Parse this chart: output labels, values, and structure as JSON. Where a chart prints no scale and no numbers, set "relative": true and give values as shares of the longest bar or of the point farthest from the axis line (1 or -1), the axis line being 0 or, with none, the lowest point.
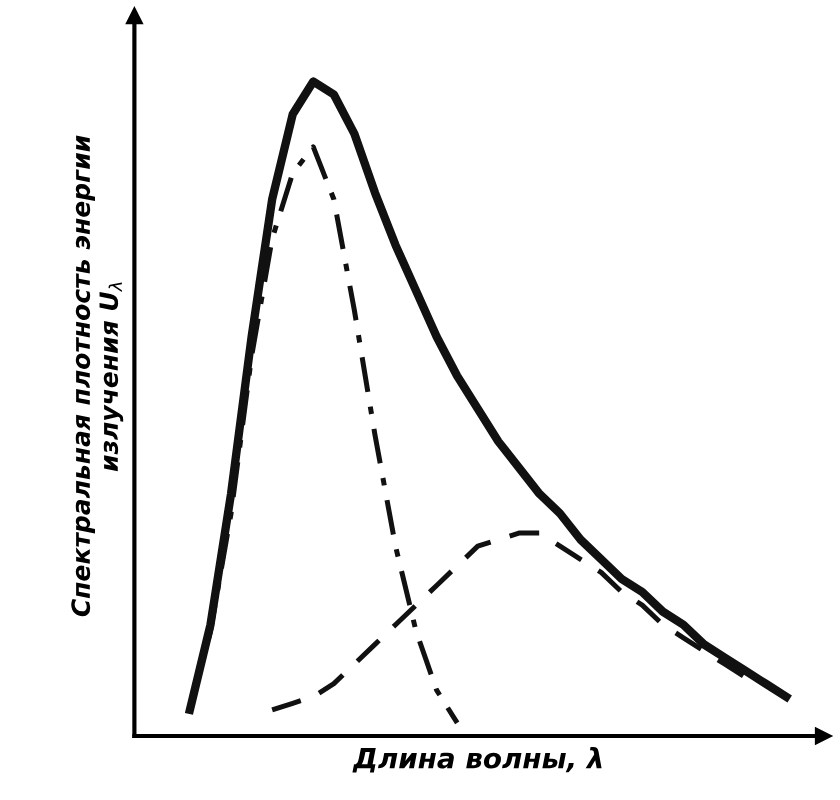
{
  "chart_data": {
    "type": "line",
    "relative": true,
    "xlabel": "Длина волны, λ",
    "ylabel": "Спектральная плотность энергии\nизлучения U$_{λ}$",
    "categories": [
      null,
      null,
      null,
      null,
      null,
      null,
      null,
      null,
      null,
      null,
      null,
      null,
      null,
      null,
      null,
      null,
      null,
      null,
      null,
      null,
      null,
      null,
      null,
      null,
      null,
      null,
      null,
      null,
      null,
      null
    ],
    "series": [
      {
        "color": "#111111",
        "line_style": "solid",
        "values": [
          0.04,
          0.17,
          0.37,
          0.61,
          0.82,
          0.95,
          1.0,
          0.98,
          0.92,
          0.83,
          0.75,
          0.68,
          0.61,
          0.55,
          0.5,
          0.45,
          0.41,
          0.37,
          0.34,
          0.3,
          0.27,
          0.24,
          0.22,
          0.19,
          0.17,
          0.14,
          0.12,
          0.1,
          0.08,
          0.06
        ]
      },
      {
        "color": "#111111",
        "line_style": "dashdot",
        "values": [
          0.04,
          0.16,
          0.34,
          0.58,
          0.76,
          0.86,
          0.9,
          0.82,
          0.65,
          0.46,
          0.29,
          0.16,
          0.07,
          0.02,
          null,
          null,
          null,
          null,
          null,
          null,
          null,
          null,
          null,
          null,
          null,
          null,
          null,
          null,
          null,
          null
        ]
      },
      {
        "color": "#111111",
        "line_style": "dashed",
        "values": [
          null,
          null,
          null,
          null,
          0.04,
          0.05,
          0.06,
          0.08,
          0.11,
          0.14,
          0.17,
          0.2,
          0.23,
          0.26,
          0.29,
          0.3,
          0.31,
          0.31,
          0.29,
          0.27,
          0.25,
          0.22,
          0.2,
          0.17,
          0.15,
          0.13,
          0.11,
          0.09,
          0.08,
          0.06
        ]
      }
    ],
    "legend": false,
    "marker": "none"
  }
}
